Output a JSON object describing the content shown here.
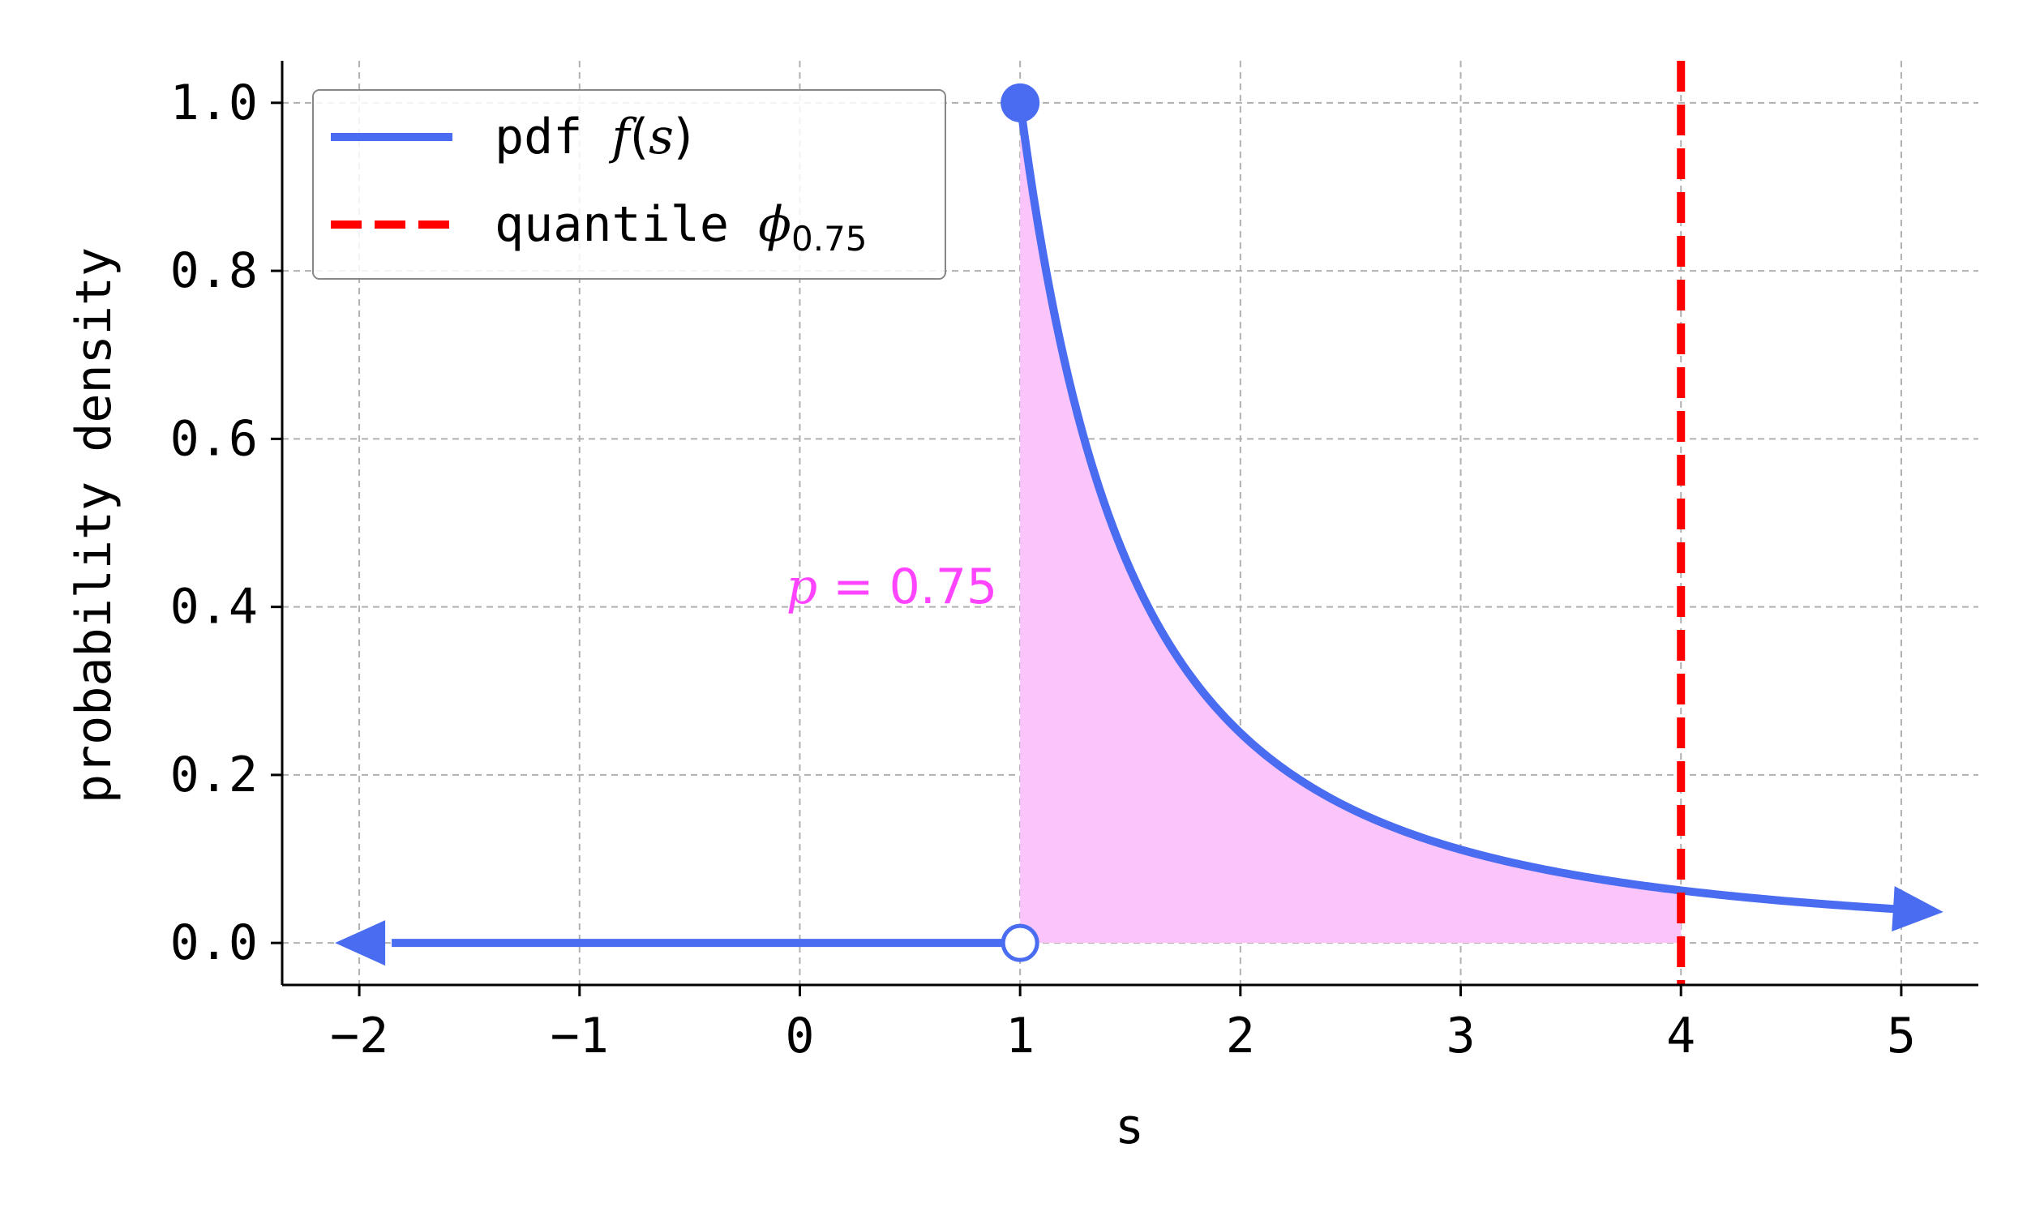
{
  "chart_data": {
    "type": "line",
    "xlabel": "s",
    "ylabel": "probability density",
    "xlim": [
      -2.35,
      5.35
    ],
    "ylim": [
      -0.05,
      1.05
    ],
    "xticks": [
      -2,
      -1,
      0,
      1,
      2,
      3,
      4,
      5
    ],
    "xtick_labels": [
      "−2",
      "−1",
      "0",
      "1",
      "2",
      "3",
      "4",
      "5"
    ],
    "yticks": [
      0.0,
      0.2,
      0.4,
      0.6,
      0.8,
      1.0
    ],
    "ytick_labels": [
      "0.0",
      "0.2",
      "0.4",
      "0.6",
      "0.8",
      "1.0"
    ],
    "grid": true,
    "legend_position": "top-left",
    "series": [
      {
        "name": "pdf f(s)",
        "legend_prefix": "pdf",
        "legend_math": "f",
        "legend_math_arg": "s",
        "color": "#4a6cf0",
        "style": "solid",
        "segments": [
          {
            "x_from": -2,
            "x_to": 1,
            "y": 0.0,
            "arrow_at": "left"
          },
          {
            "x": [
              1.0,
              1.1,
              1.2,
              1.3,
              1.4,
              1.5,
              1.75,
              2.0,
              2.25,
              2.5,
              3.0,
              3.5,
              4.0,
              4.5,
              5.0
            ],
            "y": [
              1.0,
              0.826,
              0.694,
              0.592,
              0.51,
              0.444,
              0.327,
              0.25,
              0.198,
              0.16,
              0.111,
              0.082,
              0.0625,
              0.049,
              0.04
            ],
            "arrow_at": "right"
          }
        ],
        "markers": [
          {
            "x": 1,
            "y": 1.0,
            "fill": "filled"
          },
          {
            "x": 1,
            "y": 0.0,
            "fill": "open"
          }
        ]
      },
      {
        "name": "quantile ϕ_0.75",
        "legend_prefix": "quantile",
        "legend_math": "ϕ",
        "legend_sub": "0.75",
        "color": "#ff0000",
        "style": "dashed",
        "x": 4.0
      }
    ],
    "shaded_region": {
      "x_from": 1,
      "x_to": 4,
      "color": "#fbc4fb",
      "probability": 0.75
    },
    "annotation": {
      "italic": "p",
      "text": " = 0.75",
      "x": 0.4,
      "y": 0.41,
      "color": "#ff44ff"
    }
  }
}
